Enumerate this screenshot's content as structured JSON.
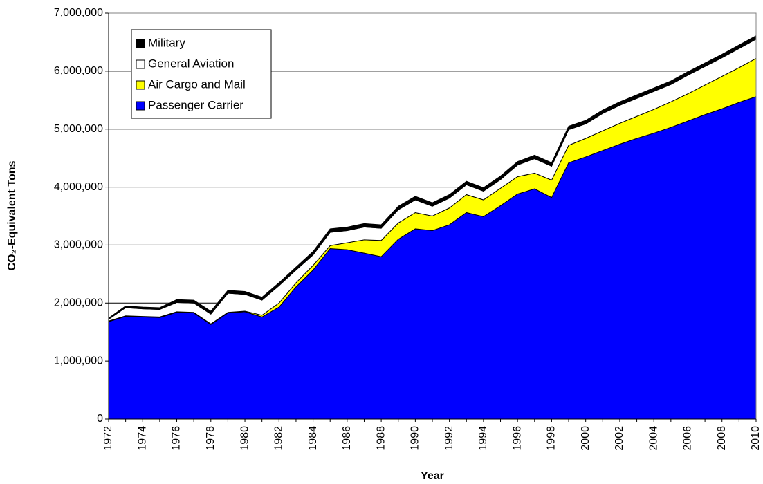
{
  "chart_data": {
    "type": "stacked_area",
    "x_label": "Year",
    "y_label": "CO₂-Equivalent Tons",
    "x": [
      1972,
      1973,
      1974,
      1975,
      1976,
      1977,
      1978,
      1979,
      1980,
      1981,
      1982,
      1983,
      1984,
      1985,
      1986,
      1987,
      1988,
      1989,
      1990,
      1991,
      1992,
      1993,
      1994,
      1995,
      1996,
      1997,
      1998,
      1999,
      2000,
      2001,
      2002,
      2003,
      2004,
      2005,
      2006,
      2007,
      2008,
      2009,
      2010
    ],
    "xlim": [
      1972,
      2010
    ],
    "xticks": [
      1972,
      1974,
      1976,
      1978,
      1980,
      1982,
      1984,
      1986,
      1988,
      1990,
      1992,
      1994,
      1996,
      1998,
      2000,
      2002,
      2004,
      2006,
      2008,
      2010
    ],
    "ylim": [
      0,
      7000000
    ],
    "yticks": [
      0,
      {
        "value": 1000000,
        "label": "1,000,000"
      },
      {
        "value": 2000000,
        "label": "2,000,000"
      },
      {
        "value": 3000000,
        "label": "3,000,000"
      },
      {
        "value": 4000000,
        "label": "4,000,000"
      },
      {
        "value": 5000000,
        "label": "5,000,000"
      },
      {
        "value": 6000000,
        "label": "6,000,000"
      },
      {
        "value": 7000000,
        "label": "7,000,000"
      }
    ],
    "grid": true,
    "legend": "upper left",
    "series": [
      {
        "name": "Passenger Carrier",
        "color": "#0000ff",
        "values": [
          1680000,
          1770000,
          1760000,
          1750000,
          1840000,
          1830000,
          1630000,
          1830000,
          1850000,
          1760000,
          1930000,
          2280000,
          2570000,
          2940000,
          2920000,
          2860000,
          2800000,
          3100000,
          3280000,
          3250000,
          3350000,
          3560000,
          3490000,
          3680000,
          3880000,
          3970000,
          3820000,
          4420000,
          4520000,
          4630000,
          4740000,
          4840000,
          4930000,
          5030000,
          5140000,
          5250000,
          5350000,
          5460000,
          5560000
        ]
      },
      {
        "name": "Air Cargo and Mail",
        "color": "#ffff00",
        "values": [
          10000,
          10000,
          10000,
          10000,
          10000,
          10000,
          10000,
          10000,
          10000,
          30000,
          70000,
          70000,
          80000,
          50000,
          120000,
          230000,
          280000,
          280000,
          280000,
          250000,
          290000,
          310000,
          290000,
          300000,
          300000,
          270000,
          300000,
          300000,
          320000,
          340000,
          360000,
          380000,
          410000,
          440000,
          470000,
          510000,
          560000,
          600000,
          660000
        ]
      },
      {
        "name": "General Aviation",
        "color": "#ffffff",
        "values": [
          30000,
          140000,
          130000,
          130000,
          160000,
          160000,
          170000,
          330000,
          290000,
          260000,
          300000,
          220000,
          180000,
          230000,
          210000,
          220000,
          210000,
          230000,
          220000,
          170000,
          170000,
          170000,
          150000,
          150000,
          200000,
          250000,
          240000,
          270000,
          250000,
          300000,
          310000,
          310000,
          310000,
          300000,
          320000,
          320000,
          320000,
          330000,
          330000
        ]
      },
      {
        "name": "Military",
        "color": "#000000",
        "values": [
          20000,
          30000,
          30000,
          30000,
          50000,
          50000,
          50000,
          50000,
          50000,
          50000,
          50000,
          50000,
          60000,
          60000,
          60000,
          60000,
          60000,
          60000,
          60000,
          60000,
          60000,
          60000,
          60000,
          60000,
          60000,
          60000,
          60000,
          60000,
          60000,
          60000,
          60000,
          60000,
          60000,
          60000,
          60000,
          60000,
          60000,
          60000,
          60000
        ]
      }
    ]
  }
}
